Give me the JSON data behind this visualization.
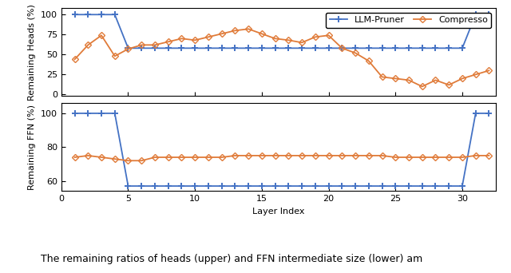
{
  "layers": [
    1,
    2,
    3,
    4,
    5,
    6,
    7,
    8,
    9,
    10,
    11,
    12,
    13,
    14,
    15,
    16,
    17,
    18,
    19,
    20,
    21,
    22,
    23,
    24,
    25,
    26,
    27,
    28,
    29,
    30,
    31,
    32
  ],
  "llm_pruner_heads": [
    100,
    100,
    100,
    100,
    58,
    58,
    58,
    58,
    58,
    58,
    58,
    58,
    58,
    58,
    58,
    58,
    58,
    58,
    58,
    58,
    58,
    58,
    58,
    58,
    58,
    58,
    58,
    58,
    58,
    58,
    100,
    100
  ],
  "compresso_heads": [
    44,
    62,
    74,
    48,
    57,
    62,
    62,
    66,
    70,
    68,
    72,
    76,
    80,
    82,
    76,
    70,
    68,
    65,
    72,
    74,
    58,
    52,
    42,
    22,
    20,
    18,
    10,
    18,
    12,
    20,
    25,
    30
  ],
  "llm_pruner_ffn": [
    100,
    100,
    100,
    100,
    57,
    57,
    57,
    57,
    57,
    57,
    57,
    57,
    57,
    57,
    57,
    57,
    57,
    57,
    57,
    57,
    57,
    57,
    57,
    57,
    57,
    57,
    57,
    57,
    57,
    57,
    100,
    100
  ],
  "compresso_ffn": [
    74,
    75,
    74,
    73,
    72,
    72,
    74,
    74,
    74,
    74,
    74,
    74,
    75,
    75,
    75,
    75,
    75,
    75,
    75,
    75,
    75,
    75,
    75,
    75,
    74,
    74,
    74,
    74,
    74,
    74,
    75,
    75
  ],
  "llm_pruner_color": "#4472c4",
  "compresso_color": "#e07b39",
  "llm_pruner_label": "LLM-Pruner",
  "compresso_label": "Compresso",
  "heads_ylabel": "Remaining Heads (%)",
  "ffn_ylabel": "Remaining FFN (%)",
  "xlabel": "Layer Index",
  "heads_ylim": [
    -2,
    108
  ],
  "ffn_ylim": [
    54,
    106
  ],
  "heads_yticks": [
    0,
    25,
    50,
    75,
    100
  ],
  "ffn_yticks": [
    60,
    80,
    100
  ],
  "xlim": [
    0.0,
    32.5
  ],
  "xticks": [
    0,
    5,
    10,
    15,
    20,
    25,
    30
  ],
  "caption": "The remaining ratios of heads (upper) and FFN intermediate size (lower) am",
  "linewidth": 1.3,
  "markersize_plus": 6,
  "markersize_diamond": 4,
  "markeredge_plus": 1.4,
  "markeredge_diamond": 1.0,
  "fontsize_label": 8,
  "fontsize_tick": 8,
  "fontsize_legend": 8,
  "fontsize_caption": 9
}
